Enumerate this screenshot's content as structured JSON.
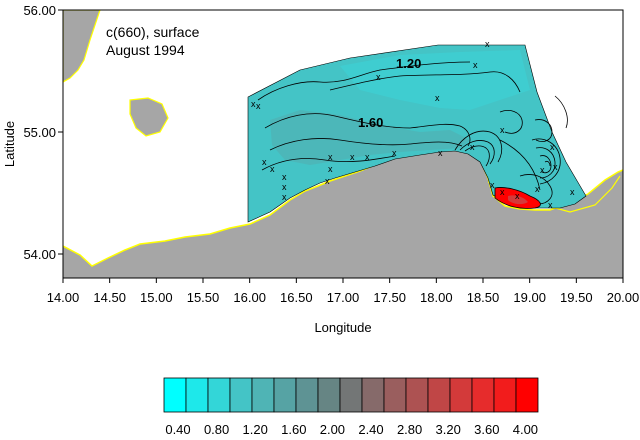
{
  "map": {
    "title_line1": "c(660), surface",
    "title_line2": "August 1994",
    "x_axis_label": "Longitude",
    "y_axis_label": "Latitude",
    "x_ticks": [
      "14.00",
      "14.50",
      "15.00",
      "15.50",
      "16.00",
      "16.50",
      "17.00",
      "17.50",
      "18.00",
      "18.50",
      "19.00",
      "19.50",
      "20.00"
    ],
    "y_ticks": [
      "56.00",
      "55.00",
      "54.00"
    ],
    "contour_labels": [
      "1.20",
      "1.60"
    ],
    "station_marker": "x",
    "colors": {
      "land": "#a6a6a6",
      "coastline": "#ffff00",
      "water_field": "#44c4c6",
      "high_value": "#ff0000",
      "contour": "#000000"
    }
  },
  "colorbar": {
    "labels": [
      "0.40",
      "0.80",
      "1.20",
      "1.60",
      "2.00",
      "2.40",
      "2.80",
      "3.20",
      "3.60",
      "4.00"
    ],
    "colors": [
      "#00ffff",
      "#1ee8ea",
      "#33d6d8",
      "#44c4c6",
      "#4fb4b5",
      "#56a3a4",
      "#5e9394",
      "#668584",
      "#737676",
      "#866a6a",
      "#9a5e5e",
      "#ad5252",
      "#c04646",
      "#d33a3a",
      "#e62c2c",
      "#f21c1c",
      "#ff0000"
    ]
  }
}
